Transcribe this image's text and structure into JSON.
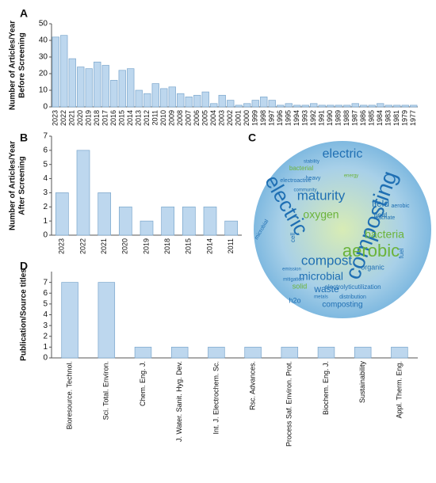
{
  "chart_data": [
    {
      "type": "bar",
      "panel": "A",
      "ylabel": [
        "Number of Articles/Year",
        "Before Screening"
      ],
      "categories": [
        "2023",
        "2022",
        "2021",
        "2020",
        "2019",
        "2018",
        "2017",
        "2016",
        "2015",
        "2014",
        "2013",
        "2012",
        "2011",
        "2010",
        "2009",
        "2008",
        "2007",
        "2006",
        "2005",
        "2004",
        "2003",
        "2002",
        "2001",
        "2000",
        "1999",
        "1998",
        "1997",
        "1996",
        "1995",
        "1994",
        "1993",
        "1992",
        "1991",
        "1990",
        "1989",
        "1988",
        "1987",
        "1986",
        "1985",
        "1984",
        "1983",
        "1981",
        "1979",
        "1977"
      ],
      "values": [
        42,
        43,
        29,
        24,
        23,
        27,
        25,
        16,
        22,
        23,
        10,
        8,
        14,
        11,
        12,
        8,
        6,
        7,
        9,
        2,
        7,
        4,
        1,
        2,
        4,
        6,
        4,
        1,
        2,
        1,
        1,
        2,
        1,
        1,
        1,
        1,
        2,
        1,
        1,
        2,
        1,
        1,
        1,
        1
      ],
      "color": "#bdd7ee",
      "ylim": [
        0,
        50
      ],
      "yticks": [
        0,
        10,
        20,
        30,
        40,
        50
      ]
    },
    {
      "type": "bar",
      "panel": "B",
      "ylabel": [
        "Number of Articles/Year",
        "After Screening"
      ],
      "categories": [
        "2023",
        "2022",
        "2021",
        "2020",
        "2019",
        "2018",
        "2015",
        "2014",
        "2011"
      ],
      "values": [
        3,
        6,
        3,
        2,
        1,
        2,
        2,
        2,
        1
      ],
      "color": "#bdd7ee",
      "ylim": [
        0,
        7
      ],
      "yticks": [
        0,
        1,
        2,
        3,
        4,
        5,
        6,
        7
      ]
    },
    {
      "type": "wordcloud",
      "panel": "C",
      "words": [
        "electric",
        "composting",
        "aerobic",
        "maturity",
        "oxygen",
        "bacteria",
        "compost",
        "microbial",
        "waste",
        "field",
        "electric",
        "electroactive",
        "bacterial",
        "community",
        "heavy",
        "stability",
        "energy",
        "leachate",
        "organic",
        "solid",
        "emission",
        "h2o",
        "cell",
        "mitigation",
        "composting",
        "metals",
        "distribution",
        "electrolyticutilization",
        "fuel",
        "field",
        "microbial",
        "aerobic"
      ]
    },
    {
      "type": "bar",
      "panel": "D",
      "ylabel": [
        "Publication/Source titles"
      ],
      "categories": [
        "Bioresource. Technol.",
        "Sci. Total. Environ.",
        "Chem. Eng. J.",
        "J. Water. Sanit. Hyg. Dev.",
        "Int. J. Electrochem. Sc.",
        "Rsc. Advances.",
        "Process Saf. Environ. Prot.",
        "Biochem. Eng. J.",
        "Sustainability",
        "Appl. Therm. Eng."
      ],
      "values": [
        7,
        7,
        1,
        1,
        1,
        1,
        1,
        1,
        1,
        1
      ],
      "color": "#bdd7ee",
      "ylim": [
        0,
        8
      ],
      "yticks": [
        0,
        1,
        2,
        3,
        4,
        5,
        6,
        7
      ]
    }
  ]
}
